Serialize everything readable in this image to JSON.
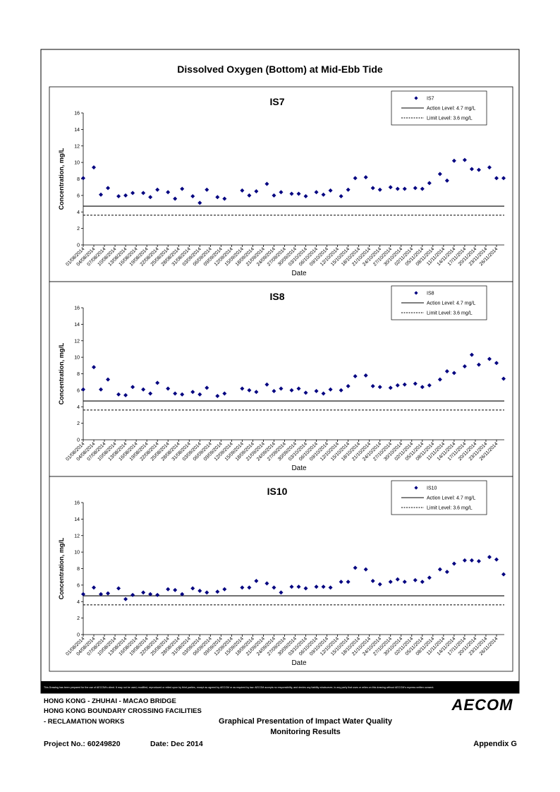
{
  "page_title": "Dissolved Oxygen (Bottom) at Mid-Ebb Tide",
  "chart_data": [
    {
      "type": "scatter",
      "title": "IS7",
      "x_label": "Date",
      "y_label": "Concentration, mg/L",
      "x": [
        "01/08/2014",
        "04/08/2014",
        "06/08/2014",
        "08/08/2014",
        "11/08/2014",
        "13/08/2014",
        "15/08/2014",
        "18/08/2014",
        "20/08/2014",
        "22/08/2014",
        "25/08/2014",
        "27/08/2014",
        "29/08/2014",
        "01/09/2014",
        "03/09/2014",
        "05/09/2014",
        "08/09/2014",
        "10/09/2014",
        "12/09/2014",
        "15/09/2014",
        "17/09/2014",
        "19/09/2014",
        "22/09/2014",
        "24/09/2014",
        "26/09/2014",
        "29/09/2014",
        "01/10/2014",
        "03/10/2014",
        "06/10/2014",
        "08/10/2014",
        "10/10/2014",
        "13/10/2014",
        "15/10/2014",
        "17/10/2014",
        "20/10/2014",
        "22/10/2014",
        "24/10/2014",
        "27/10/2014",
        "29/10/2014",
        "31/10/2014",
        "03/11/2014",
        "05/11/2014",
        "07/11/2014",
        "10/11/2014",
        "12/11/2014",
        "14/11/2014",
        "17/11/2014",
        "19/11/2014",
        "21/11/2014",
        "24/11/2014",
        "26/11/2014",
        "28/11/2014"
      ],
      "series": [
        {
          "name": "IS7",
          "color": "#000080",
          "values": [
            8.1,
            9.4,
            6.1,
            6.9,
            5.9,
            6.0,
            6.3,
            6.3,
            5.8,
            6.7,
            6.4,
            5.6,
            6.8,
            5.9,
            5.1,
            6.7,
            5.8,
            5.6,
            null,
            6.6,
            6.0,
            6.5,
            7.4,
            6.0,
            6.4,
            6.2,
            6.2,
            5.9,
            6.4,
            6.1,
            6.6,
            5.9,
            6.7,
            8.1,
            8.2,
            6.9,
            6.7,
            7.0,
            6.8,
            6.8,
            6.9,
            6.8,
            7.5,
            8.6,
            7.8,
            10.2,
            10.3,
            9.2,
            9.1,
            9.4,
            8.1,
            8.1
          ]
        }
      ],
      "reference_lines": [
        {
          "name": "Action Level: 4.7 mg/L",
          "value": 4.7,
          "style": "solid"
        },
        {
          "name": "Limit Level: 3.6 mg/L",
          "value": 3.6,
          "style": "dashed"
        }
      ],
      "ylim": [
        0,
        16
      ],
      "yticks": [
        0,
        2,
        4,
        6,
        8,
        10,
        12,
        14,
        16
      ],
      "xlim": [
        "01/08/2014",
        "28/11/2014"
      ],
      "xticks": [
        "01/08/2014",
        "04/08/2014",
        "07/08/2014",
        "10/08/2014",
        "13/08/2014",
        "16/08/2014",
        "19/08/2014",
        "22/08/2014",
        "25/08/2014",
        "28/08/2014",
        "31/08/2014",
        "03/09/2014",
        "06/09/2014",
        "09/09/2014",
        "12/09/2014",
        "15/09/2014",
        "18/09/2014",
        "21/09/2014",
        "24/09/2014",
        "27/09/2014",
        "30/09/2014",
        "03/10/2014",
        "06/10/2014",
        "09/10/2014",
        "12/10/2014",
        "15/10/2014",
        "18/10/2014",
        "21/10/2014",
        "24/10/2014",
        "27/10/2014",
        "30/10/2014",
        "02/11/2014",
        "05/11/2014",
        "08/11/2014",
        "11/11/2014",
        "14/11/2014",
        "17/11/2014",
        "20/11/2014",
        "23/11/2014",
        "26/11/2014"
      ],
      "legend": "upper right"
    },
    {
      "type": "scatter",
      "title": "IS8",
      "x_label": "Date",
      "y_label": "Concentration, mg/L",
      "x": [
        "01/08/2014",
        "04/08/2014",
        "06/08/2014",
        "08/08/2014",
        "11/08/2014",
        "13/08/2014",
        "15/08/2014",
        "18/08/2014",
        "20/08/2014",
        "22/08/2014",
        "25/08/2014",
        "27/08/2014",
        "29/08/2014",
        "01/09/2014",
        "03/09/2014",
        "05/09/2014",
        "08/09/2014",
        "10/09/2014",
        "12/09/2014",
        "15/09/2014",
        "17/09/2014",
        "19/09/2014",
        "22/09/2014",
        "24/09/2014",
        "26/09/2014",
        "29/09/2014",
        "01/10/2014",
        "03/10/2014",
        "06/10/2014",
        "08/10/2014",
        "10/10/2014",
        "13/10/2014",
        "15/10/2014",
        "17/10/2014",
        "20/10/2014",
        "22/10/2014",
        "24/10/2014",
        "27/10/2014",
        "29/10/2014",
        "31/10/2014",
        "03/11/2014",
        "05/11/2014",
        "07/11/2014",
        "10/11/2014",
        "12/11/2014",
        "14/11/2014",
        "17/11/2014",
        "19/11/2014",
        "21/11/2014",
        "24/11/2014",
        "26/11/2014",
        "28/11/2014"
      ],
      "series": [
        {
          "name": "IS8",
          "color": "#000080",
          "values": [
            6.1,
            8.8,
            6.1,
            7.3,
            5.5,
            5.4,
            6.4,
            6.1,
            5.6,
            6.9,
            6.2,
            5.6,
            5.5,
            5.8,
            5.5,
            6.3,
            5.3,
            5.6,
            null,
            6.2,
            6.0,
            5.8,
            6.7,
            5.9,
            6.2,
            6.0,
            6.2,
            5.7,
            5.9,
            5.6,
            6.1,
            6.0,
            6.5,
            7.7,
            7.8,
            6.5,
            6.4,
            6.3,
            6.6,
            6.7,
            6.8,
            6.4,
            6.6,
            7.3,
            8.3,
            8.1,
            8.9,
            10.3,
            9.1,
            9.8,
            9.3,
            7.4
          ]
        }
      ],
      "reference_lines": [
        {
          "name": "Action Level: 4.7 mg/L",
          "value": 4.7,
          "style": "solid"
        },
        {
          "name": "Limit Level: 3.6 mg/L",
          "value": 3.6,
          "style": "dashed"
        }
      ],
      "ylim": [
        0,
        16
      ],
      "yticks": [
        0,
        2,
        4,
        6,
        8,
        10,
        12,
        14,
        16
      ],
      "xlim": [
        "01/08/2014",
        "28/11/2014"
      ],
      "xticks": [
        "01/08/2014",
        "04/08/2014",
        "07/08/2014",
        "10/08/2014",
        "13/08/2014",
        "16/08/2014",
        "19/08/2014",
        "22/08/2014",
        "25/08/2014",
        "28/08/2014",
        "31/08/2014",
        "03/09/2014",
        "06/09/2014",
        "09/09/2014",
        "12/09/2014",
        "15/09/2014",
        "18/09/2014",
        "21/09/2014",
        "24/09/2014",
        "27/09/2014",
        "30/09/2014",
        "03/10/2014",
        "06/10/2014",
        "09/10/2014",
        "12/10/2014",
        "15/10/2014",
        "18/10/2014",
        "21/10/2014",
        "24/10/2014",
        "27/10/2014",
        "30/10/2014",
        "02/11/2014",
        "05/11/2014",
        "08/11/2014",
        "11/11/2014",
        "14/11/2014",
        "17/11/2014",
        "20/11/2014",
        "23/11/2014",
        "26/11/2014"
      ],
      "legend": "upper right"
    },
    {
      "type": "scatter",
      "title": "IS10",
      "x_label": "Date",
      "y_label": "Concentration, mg/L",
      "x": [
        "01/08/2014",
        "04/08/2014",
        "06/08/2014",
        "08/08/2014",
        "11/08/2014",
        "13/08/2014",
        "15/08/2014",
        "18/08/2014",
        "20/08/2014",
        "22/08/2014",
        "25/08/2014",
        "27/08/2014",
        "29/08/2014",
        "01/09/2014",
        "03/09/2014",
        "05/09/2014",
        "08/09/2014",
        "10/09/2014",
        "12/09/2014",
        "15/09/2014",
        "17/09/2014",
        "19/09/2014",
        "22/09/2014",
        "24/09/2014",
        "26/09/2014",
        "29/09/2014",
        "01/10/2014",
        "03/10/2014",
        "06/10/2014",
        "08/10/2014",
        "10/10/2014",
        "13/10/2014",
        "15/10/2014",
        "17/10/2014",
        "20/10/2014",
        "22/10/2014",
        "24/10/2014",
        "27/10/2014",
        "29/10/2014",
        "31/10/2014",
        "03/11/2014",
        "05/11/2014",
        "07/11/2014",
        "10/11/2014",
        "12/11/2014",
        "14/11/2014",
        "17/11/2014",
        "19/11/2014",
        "21/11/2014",
        "24/11/2014",
        "26/11/2014",
        "28/11/2014"
      ],
      "series": [
        {
          "name": "IS10",
          "color": "#000080",
          "values": [
            4.9,
            5.7,
            4.9,
            5.0,
            5.6,
            4.3,
            4.8,
            5.1,
            4.9,
            4.8,
            5.5,
            5.4,
            4.9,
            5.6,
            5.3,
            5.1,
            5.2,
            5.5,
            null,
            5.7,
            5.7,
            6.5,
            6.2,
            5.7,
            5.1,
            5.8,
            5.8,
            5.6,
            5.8,
            5.8,
            5.7,
            6.4,
            6.4,
            8.1,
            7.9,
            6.5,
            6.1,
            6.4,
            6.7,
            6.4,
            6.6,
            6.4,
            6.9,
            7.9,
            7.6,
            8.6,
            9.0,
            9.0,
            8.9,
            9.4,
            9.1,
            7.3
          ]
        }
      ],
      "reference_lines": [
        {
          "name": "Action Level: 4.7 mg/L",
          "value": 4.7,
          "style": "solid"
        },
        {
          "name": "Limit Level: 3.6 mg/L",
          "value": 3.6,
          "style": "dashed"
        }
      ],
      "ylim": [
        0,
        16
      ],
      "yticks": [
        0,
        2,
        4,
        6,
        8,
        10,
        12,
        14,
        16
      ],
      "xlim": [
        "01/08/2014",
        "28/11/2014"
      ],
      "xticks": [
        "01/08/2014",
        "04/08/2014",
        "07/08/2014",
        "10/08/2014",
        "13/08/2014",
        "16/08/2014",
        "19/08/2014",
        "22/08/2014",
        "25/08/2014",
        "28/08/2014",
        "31/08/2014",
        "03/09/2014",
        "06/09/2014",
        "09/09/2014",
        "12/09/2014",
        "15/09/2014",
        "18/09/2014",
        "21/09/2014",
        "24/09/2014",
        "27/09/2014",
        "30/09/2014",
        "03/10/2014",
        "06/10/2014",
        "09/10/2014",
        "12/10/2014",
        "15/10/2014",
        "18/10/2014",
        "21/10/2014",
        "24/10/2014",
        "27/10/2014",
        "30/10/2014",
        "02/11/2014",
        "05/11/2014",
        "08/11/2014",
        "11/11/2014",
        "14/11/2014",
        "17/11/2014",
        "20/11/2014",
        "23/11/2014",
        "26/11/2014"
      ],
      "legend": "upper right"
    }
  ],
  "footer": {
    "disclaimer": "This Drawing has been prepared for the use of AECOM's client. It may not be used, modified, reproduced or relied upon by third parties, except as agreed by AECOM or as required by law. AECOM accepts no responsibility, and denies any liability whatsoever, to any party that uses or relies on this drawing without AECOM's express written consent.",
    "project_lines": [
      "HONG KONG - ZHUHAI - MACAO BRIDGE",
      "HONG KONG BOUNDARY CROSSING FACILITIES",
      "- RECLAMATION WORKS"
    ],
    "drawing_title": [
      "Graphical Presentation of Impact Water Quality",
      "Monitoring Results"
    ],
    "project_no": "Project No.: 60249820",
    "date": "Date: Dec 2014",
    "appendix": "Appendix G",
    "logo": "AECOM"
  }
}
